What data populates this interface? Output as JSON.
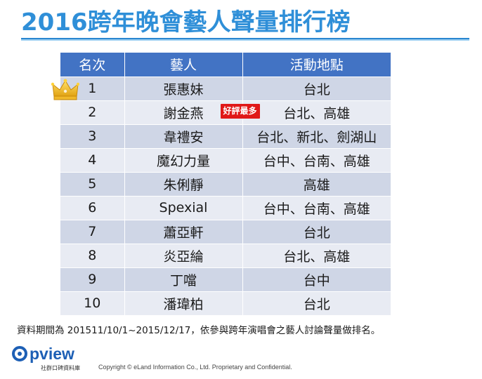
{
  "title": "2016跨年晚會藝人聲量排行榜",
  "table": {
    "headers": [
      "名次",
      "藝人",
      "活動地點"
    ],
    "rows": [
      {
        "rank": "1",
        "artist": "張惠妹",
        "location": "台北",
        "badge": ""
      },
      {
        "rank": "2",
        "artist": "謝金燕",
        "location": "台北、高雄",
        "badge": "好評最多"
      },
      {
        "rank": "3",
        "artist": "韋禮安",
        "location": "台北、新北、劍湖山",
        "badge": ""
      },
      {
        "rank": "4",
        "artist": "魔幻力量",
        "location": "台中、台南、高雄",
        "badge": ""
      },
      {
        "rank": "5",
        "artist": "朱俐靜",
        "location": "高雄",
        "badge": ""
      },
      {
        "rank": "6",
        "artist": "Spexial",
        "location": "台中、台南、高雄",
        "badge": ""
      },
      {
        "rank": "7",
        "artist": "蕭亞軒",
        "location": "台北",
        "badge": ""
      },
      {
        "rank": "8",
        "artist": "炎亞綸",
        "location": "台北、高雄",
        "badge": ""
      },
      {
        "rank": "9",
        "artist": "丁噹",
        "location": "台中",
        "badge": ""
      },
      {
        "rank": "10",
        "artist": "潘瑋柏",
        "location": "台北",
        "badge": ""
      }
    ]
  },
  "note": "資料期間為 201511/10/1~2015/12/17，依參與跨年演唱會之藝人討論聲量做排名。",
  "footer": {
    "logo_text": "pview",
    "logo_sub": "社群口碑資料庫",
    "copyright": "Copyright  © eLand Information Co., Ltd. Proprietary and Confidential."
  },
  "colors": {
    "title": "#2f8fd8",
    "header_bg": "#4273c4",
    "row_dark": "#cfd6e6",
    "row_light": "#e8ebf3",
    "badge_bg": "#e01818",
    "logo": "#1d5fb5"
  },
  "icons": [
    "crown-icon",
    "opview-logo-icon"
  ]
}
